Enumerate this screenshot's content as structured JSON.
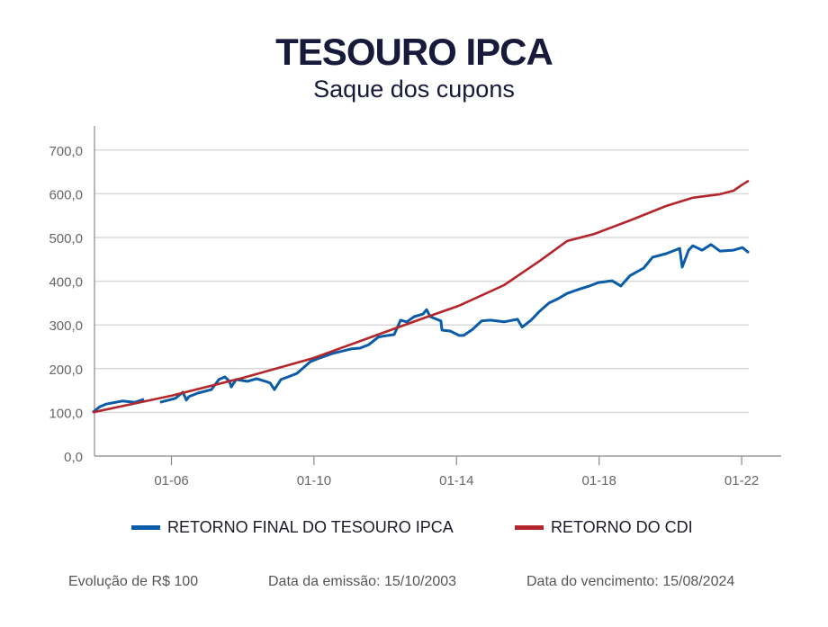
{
  "chart_data": {
    "type": "line",
    "title": "TESOURO IPCA",
    "subtitle": "Saque dos cupons",
    "xlabel": "",
    "ylabel": "",
    "xlim": [
      2003.79,
      2022.9
    ],
    "ylim": [
      0,
      700
    ],
    "yticks": [
      0,
      100,
      200,
      300,
      400,
      500,
      600,
      700
    ],
    "ytick_labels": [
      "0,0",
      "100,0",
      "200,0",
      "300,0",
      "400,0",
      "500,0",
      "600,0",
      "700,0"
    ],
    "xticks": [
      2006,
      2010,
      2014,
      2018,
      2022
    ],
    "xtick_labels": [
      "01-06",
      "01-10",
      "01-14",
      "01-18",
      "01-22"
    ],
    "grid": true,
    "legend_position": "bottom",
    "series": [
      {
        "name": "RETORNO FINAL DO TESOURO IPCA",
        "color": "#0b5ca8",
        "x": [
          2003.79,
          2003.99,
          2004.17,
          2004.62,
          2004.98,
          2005.23,
          null,
          2005.68,
          2006.11,
          2006.32,
          2006.42,
          2006.49,
          2006.74,
          2007.12,
          2007.33,
          2007.5,
          2007.63,
          2007.68,
          2007.81,
          2008.13,
          2008.39,
          2008.64,
          2008.77,
          2008.89,
          2009.07,
          2009.27,
          2009.52,
          2009.9,
          2010.15,
          2010.53,
          2011.04,
          2011.29,
          2011.54,
          2011.8,
          2011.92,
          2012.25,
          2012.43,
          2012.6,
          2012.81,
          2013.06,
          2013.16,
          2013.26,
          2013.44,
          2013.56,
          2013.59,
          2013.82,
          2014.07,
          2014.2,
          2014.45,
          2014.7,
          2014.95,
          2015.33,
          2015.71,
          2015.84,
          2016.09,
          2016.34,
          2016.59,
          2016.85,
          2017.1,
          2017.48,
          2017.73,
          2017.98,
          2018.36,
          2018.61,
          2018.87,
          2019.25,
          2019.5,
          2019.88,
          2020.26,
          2020.33,
          2020.51,
          2020.63,
          2020.89,
          2021.14,
          2021.39,
          2021.77,
          2022.02,
          2022.2
        ],
        "values": [
          100,
          113,
          119,
          126,
          123,
          130,
          null,
          123,
          132,
          146,
          128,
          136,
          144,
          152,
          175,
          181,
          171,
          158,
          175,
          171,
          177,
          171,
          167,
          152,
          175,
          181,
          189,
          216,
          224,
          235,
          245,
          247,
          255,
          272,
          274,
          278,
          311,
          307,
          319,
          325,
          335,
          319,
          313,
          309,
          288,
          286,
          276,
          276,
          290,
          309,
          311,
          307,
          313,
          295,
          311,
          332,
          350,
          360,
          372,
          383,
          389,
          397,
          401,
          389,
          413,
          430,
          455,
          463,
          475,
          432,
          471,
          481,
          471,
          484,
          469,
          471,
          477,
          465
        ]
      },
      {
        "name": "RETORNO DO CDI",
        "color": "#b3262b",
        "x": [
          2003.79,
          2006.0,
          2008.01,
          2009.98,
          2011.8,
          2013.06,
          2014.07,
          2015.33,
          2016.34,
          2017.1,
          2017.86,
          2018.87,
          2019.88,
          2020.63,
          2021.39,
          2021.77,
          2022.02,
          2022.2
        ],
        "values": [
          100,
          138,
          179,
          224,
          278,
          315,
          344,
          391,
          447,
          492,
          508,
          539,
          572,
          591,
          599,
          607,
          621,
          630
        ]
      }
    ]
  },
  "footer": {
    "base": "Evolução de R$ 100",
    "issue": "Data da emissão: 15/10/2003",
    "maturity": "Data do vencimento: 15/08/2024"
  }
}
